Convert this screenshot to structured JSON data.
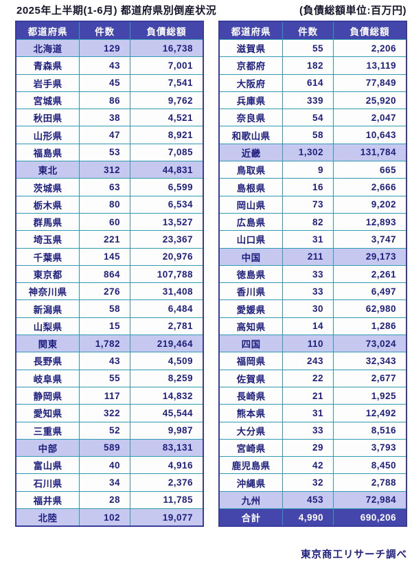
{
  "title": {
    "main": "2025年上半期(1-6月) 都道府県別倒産状況",
    "unit_note": "(負債総額単位:百万円)"
  },
  "table_headers": [
    "都道府県",
    "件数",
    "負債総額"
  ],
  "left_table": {
    "rows": [
      {
        "name": "北海道",
        "cases": "129",
        "debt": "16,738",
        "type": "region"
      },
      {
        "name": "青森県",
        "cases": "43",
        "debt": "7,001",
        "type": "normal"
      },
      {
        "name": "岩手県",
        "cases": "45",
        "debt": "7,541",
        "type": "normal"
      },
      {
        "name": "宮城県",
        "cases": "86",
        "debt": "9,762",
        "type": "normal"
      },
      {
        "name": "秋田県",
        "cases": "38",
        "debt": "4,521",
        "type": "normal"
      },
      {
        "name": "山形県",
        "cases": "47",
        "debt": "8,921",
        "type": "normal"
      },
      {
        "name": "福島県",
        "cases": "53",
        "debt": "7,085",
        "type": "normal"
      },
      {
        "name": "東北",
        "cases": "312",
        "debt": "44,831",
        "type": "region"
      },
      {
        "name": "茨城県",
        "cases": "63",
        "debt": "6,599",
        "type": "normal"
      },
      {
        "name": "栃木県",
        "cases": "80",
        "debt": "6,534",
        "type": "normal"
      },
      {
        "name": "群馬県",
        "cases": "60",
        "debt": "13,527",
        "type": "normal"
      },
      {
        "name": "埼玉県",
        "cases": "221",
        "debt": "23,367",
        "type": "normal"
      },
      {
        "name": "千葉県",
        "cases": "145",
        "debt": "20,976",
        "type": "normal"
      },
      {
        "name": "東京都",
        "cases": "864",
        "debt": "107,788",
        "type": "normal"
      },
      {
        "name": "神奈川県",
        "cases": "276",
        "debt": "31,408",
        "type": "normal"
      },
      {
        "name": "新潟県",
        "cases": "58",
        "debt": "6,484",
        "type": "normal"
      },
      {
        "name": "山梨県",
        "cases": "15",
        "debt": "2,781",
        "type": "normal"
      },
      {
        "name": "関東",
        "cases": "1,782",
        "debt": "219,464",
        "type": "region"
      },
      {
        "name": "長野県",
        "cases": "43",
        "debt": "4,509",
        "type": "normal"
      },
      {
        "name": "岐阜県",
        "cases": "55",
        "debt": "8,259",
        "type": "normal"
      },
      {
        "name": "静岡県",
        "cases": "117",
        "debt": "14,832",
        "type": "normal"
      },
      {
        "name": "愛知県",
        "cases": "322",
        "debt": "45,544",
        "type": "normal"
      },
      {
        "name": "三重県",
        "cases": "52",
        "debt": "9,987",
        "type": "normal"
      },
      {
        "name": "中部",
        "cases": "589",
        "debt": "83,131",
        "type": "region"
      },
      {
        "name": "富山県",
        "cases": "40",
        "debt": "4,916",
        "type": "normal"
      },
      {
        "name": "石川県",
        "cases": "34",
        "debt": "2,376",
        "type": "normal"
      },
      {
        "name": "福井県",
        "cases": "28",
        "debt": "11,785",
        "type": "normal"
      },
      {
        "name": "北陸",
        "cases": "102",
        "debt": "19,077",
        "type": "region"
      }
    ]
  },
  "right_table": {
    "rows": [
      {
        "name": "滋賀県",
        "cases": "55",
        "debt": "2,206",
        "type": "normal"
      },
      {
        "name": "京都府",
        "cases": "182",
        "debt": "13,119",
        "type": "normal"
      },
      {
        "name": "大阪府",
        "cases": "614",
        "debt": "77,849",
        "type": "normal"
      },
      {
        "name": "兵庫県",
        "cases": "339",
        "debt": "25,920",
        "type": "normal"
      },
      {
        "name": "奈良県",
        "cases": "54",
        "debt": "2,047",
        "type": "normal"
      },
      {
        "name": "和歌山県",
        "cases": "58",
        "debt": "10,643",
        "type": "normal"
      },
      {
        "name": "近畿",
        "cases": "1,302",
        "debt": "131,784",
        "type": "region"
      },
      {
        "name": "鳥取県",
        "cases": "9",
        "debt": "665",
        "type": "normal"
      },
      {
        "name": "島根県",
        "cases": "16",
        "debt": "2,666",
        "type": "normal"
      },
      {
        "name": "岡山県",
        "cases": "73",
        "debt": "9,202",
        "type": "normal"
      },
      {
        "name": "広島県",
        "cases": "82",
        "debt": "12,893",
        "type": "normal"
      },
      {
        "name": "山口県",
        "cases": "31",
        "debt": "3,747",
        "type": "normal"
      },
      {
        "name": "中国",
        "cases": "211",
        "debt": "29,173",
        "type": "region"
      },
      {
        "name": "徳島県",
        "cases": "33",
        "debt": "2,261",
        "type": "normal"
      },
      {
        "name": "香川県",
        "cases": "33",
        "debt": "6,497",
        "type": "normal"
      },
      {
        "name": "愛媛県",
        "cases": "30",
        "debt": "62,980",
        "type": "normal"
      },
      {
        "name": "高知県",
        "cases": "14",
        "debt": "1,286",
        "type": "normal"
      },
      {
        "name": "四国",
        "cases": "110",
        "debt": "73,024",
        "type": "region"
      },
      {
        "name": "福岡県",
        "cases": "243",
        "debt": "32,343",
        "type": "normal"
      },
      {
        "name": "佐賀県",
        "cases": "22",
        "debt": "2,677",
        "type": "normal"
      },
      {
        "name": "長崎県",
        "cases": "21",
        "debt": "1,925",
        "type": "normal"
      },
      {
        "name": "熊本県",
        "cases": "31",
        "debt": "12,492",
        "type": "normal"
      },
      {
        "name": "大分県",
        "cases": "33",
        "debt": "8,516",
        "type": "normal"
      },
      {
        "name": "宮崎県",
        "cases": "29",
        "debt": "3,793",
        "type": "normal"
      },
      {
        "name": "鹿児島県",
        "cases": "42",
        "debt": "8,450",
        "type": "normal"
      },
      {
        "name": "沖縄県",
        "cases": "32",
        "debt": "2,788",
        "type": "normal"
      },
      {
        "name": "九州",
        "cases": "453",
        "debt": "72,984",
        "type": "region"
      },
      {
        "name": "合計",
        "cases": "4,990",
        "debt": "690,206",
        "type": "total"
      }
    ]
  },
  "footer": {
    "credit": "東京商工リサーチ調べ"
  },
  "colors": {
    "header_bg": "#4446AC",
    "outer_border": "#3A3C9C",
    "subtotal_bg": "#C7C8EF",
    "grid_line": "#2F9BB3",
    "cell_text": "#1D1E7E",
    "title_text": "#14142B"
  }
}
